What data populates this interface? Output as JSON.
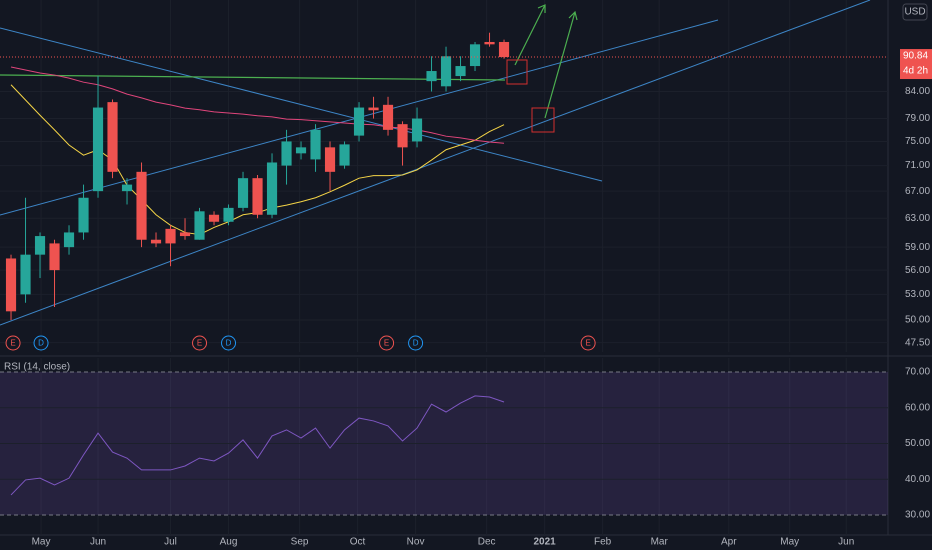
{
  "chart_data": [
    {
      "type": "candlestick",
      "currency": "USD",
      "last_price": 90.84,
      "countdown": "4d 2h",
      "log_scale": true,
      "grid": true,
      "up_color": "#26a69a",
      "down_color": "#ef5350",
      "x": [
        0,
        1,
        2,
        3,
        4,
        5,
        6,
        7,
        8,
        9,
        10,
        11,
        12,
        13,
        14,
        15,
        16,
        17,
        18,
        19,
        20,
        21,
        22,
        23,
        24,
        25,
        26,
        27,
        28,
        29,
        30,
        31,
        32,
        33,
        34
      ],
      "open": [
        57.5,
        53,
        58,
        59.5,
        59,
        61,
        67,
        82,
        67,
        70,
        60,
        61.5,
        61,
        60,
        63.5,
        62.5,
        64.5,
        69,
        63.5,
        71,
        73,
        72,
        74,
        71,
        76,
        81,
        81.5,
        78,
        75,
        86,
        85,
        87,
        89,
        94,
        94
      ],
      "high": [
        58,
        66,
        61,
        60,
        62,
        68,
        87,
        82.5,
        69,
        71.5,
        61,
        62,
        63,
        64.5,
        64,
        65,
        70,
        69.5,
        73,
        77,
        75,
        78,
        75,
        75,
        82,
        83,
        83,
        78.5,
        81,
        91,
        93,
        91,
        94,
        96,
        94.5
      ],
      "low": [
        50,
        52,
        55,
        51.5,
        58,
        60,
        66,
        69,
        65,
        59,
        59,
        56.5,
        60,
        60,
        62,
        62,
        64,
        63,
        63,
        68,
        72,
        70,
        67,
        70.5,
        75,
        79,
        76,
        71,
        74,
        84,
        84,
        86,
        88,
        93,
        90.5
      ],
      "close": [
        51,
        58,
        60.5,
        56,
        61,
        66,
        81,
        70,
        68,
        60,
        59.5,
        59.5,
        60.5,
        64,
        62.5,
        64.5,
        69,
        63.5,
        71.5,
        75,
        74,
        77,
        70,
        74.5,
        81,
        80.5,
        77,
        74,
        79,
        88,
        91,
        89,
        93.5,
        93.5,
        90.84
      ],
      "lines": [
        {
          "color": "#f5d547",
          "values": [
            85.3,
            82.4,
            79.6,
            77.0,
            74.4,
            72.7,
            73.6,
            71.9,
            67.9,
            65.7,
            63.5,
            62.0,
            61.0,
            60.7,
            61.7,
            62.5,
            63.5,
            63.8,
            64.5,
            64.9,
            65.4,
            66.0,
            66.9,
            67.9,
            69.0,
            69.4,
            69.4,
            69.5,
            70.3,
            71.9,
            73.6,
            74.4,
            75.2,
            76.7,
            77.9
          ]
        },
        {
          "color": "#e0457b",
          "values": [
            88.8,
            88.2,
            87.6,
            87.2,
            86.6,
            85.8,
            85.3,
            84.5,
            83.5,
            82.8,
            82.0,
            81.5,
            80.9,
            80.6,
            80.2,
            80.0,
            79.8,
            79.5,
            79.3,
            78.9,
            78.8,
            78.6,
            78.4,
            78.2,
            78.0,
            77.9,
            77.5,
            77.3,
            77.0,
            76.5,
            75.9,
            75.6,
            75.2,
            74.9,
            74.7
          ]
        }
      ],
      "ylim": [
        46.5,
        103.4
      ],
      "yticks": [
        {
          "value": 47.5,
          "label": "47.50"
        },
        {
          "value": 50,
          "label": "50.00"
        },
        {
          "value": 53,
          "label": "53.00"
        },
        {
          "value": 56,
          "label": "56.00"
        },
        {
          "value": 59,
          "label": "59.00"
        },
        {
          "value": 63,
          "label": "63.00"
        },
        {
          "value": 67,
          "label": "67.00"
        },
        {
          "value": 71,
          "label": "71.00"
        },
        {
          "value": 75,
          "label": "75.00"
        },
        {
          "value": 79,
          "label": "79.00"
        },
        {
          "value": 84,
          "label": "84.00"
        }
      ],
      "xlim": [
        -0.76,
        60.48
      ],
      "xticks": [
        {
          "value": 2.07,
          "label": "May"
        },
        {
          "value": 6,
          "label": "Jun"
        },
        {
          "value": 11,
          "label": "Jul"
        },
        {
          "value": 15,
          "label": "Aug"
        },
        {
          "value": 19.9,
          "label": "Sep"
        },
        {
          "value": 23.9,
          "label": "Oct"
        },
        {
          "value": 27.9,
          "label": "Nov"
        },
        {
          "value": 32.8,
          "label": "Dec"
        },
        {
          "value": 36.8,
          "label": "2021"
        },
        {
          "value": 40.8,
          "label": "Feb"
        },
        {
          "value": 44.7,
          "label": "Mar"
        },
        {
          "value": 49.5,
          "label": "Apr"
        },
        {
          "value": 53.7,
          "label": "May"
        },
        {
          "value": 57.6,
          "label": "Jun"
        }
      ],
      "events": [
        {
          "label": "E",
          "x": 0.14
        },
        {
          "label": "D",
          "x": 2.07
        },
        {
          "label": "E",
          "x": 13
        },
        {
          "label": "D",
          "x": 15
        },
        {
          "label": "E",
          "x": 25.9
        },
        {
          "label": "D",
          "x": 27.9
        },
        {
          "label": "E",
          "x": 39.8
        }
      ]
    },
    {
      "type": "line",
      "title": "RSI (14, close)",
      "color": "#7e57c2",
      "x": [
        0,
        1,
        2,
        3,
        4,
        5,
        6,
        7,
        8,
        9,
        10,
        11,
        12,
        13,
        14,
        15,
        16,
        17,
        18,
        19,
        20,
        21,
        22,
        23,
        24,
        25,
        26,
        27,
        28,
        29,
        30,
        31,
        32,
        33,
        34
      ],
      "values": [
        35.6,
        39.8,
        40.3,
        38.4,
        40.3,
        46.8,
        52.9,
        47.6,
        45.9,
        42.6,
        42.6,
        42.6,
        43.7,
        45.9,
        45.1,
        47.3,
        51.0,
        45.9,
        52.1,
        53.8,
        51.5,
        54.3,
        48.7,
        53.8,
        57.1,
        56.3,
        54.9,
        50.7,
        54.3,
        61.0,
        58.8,
        61.3,
        63.3,
        63.0,
        61.6
      ],
      "ylim": [
        24.4,
        73.9
      ],
      "yticks": [
        {
          "value": 30,
          "label": "30.00"
        },
        {
          "value": 40,
          "label": "40.00"
        },
        {
          "value": 50,
          "label": "50.00"
        },
        {
          "value": 60,
          "label": "60.00"
        },
        {
          "value": 70,
          "label": "70.00"
        }
      ]
    }
  ]
}
